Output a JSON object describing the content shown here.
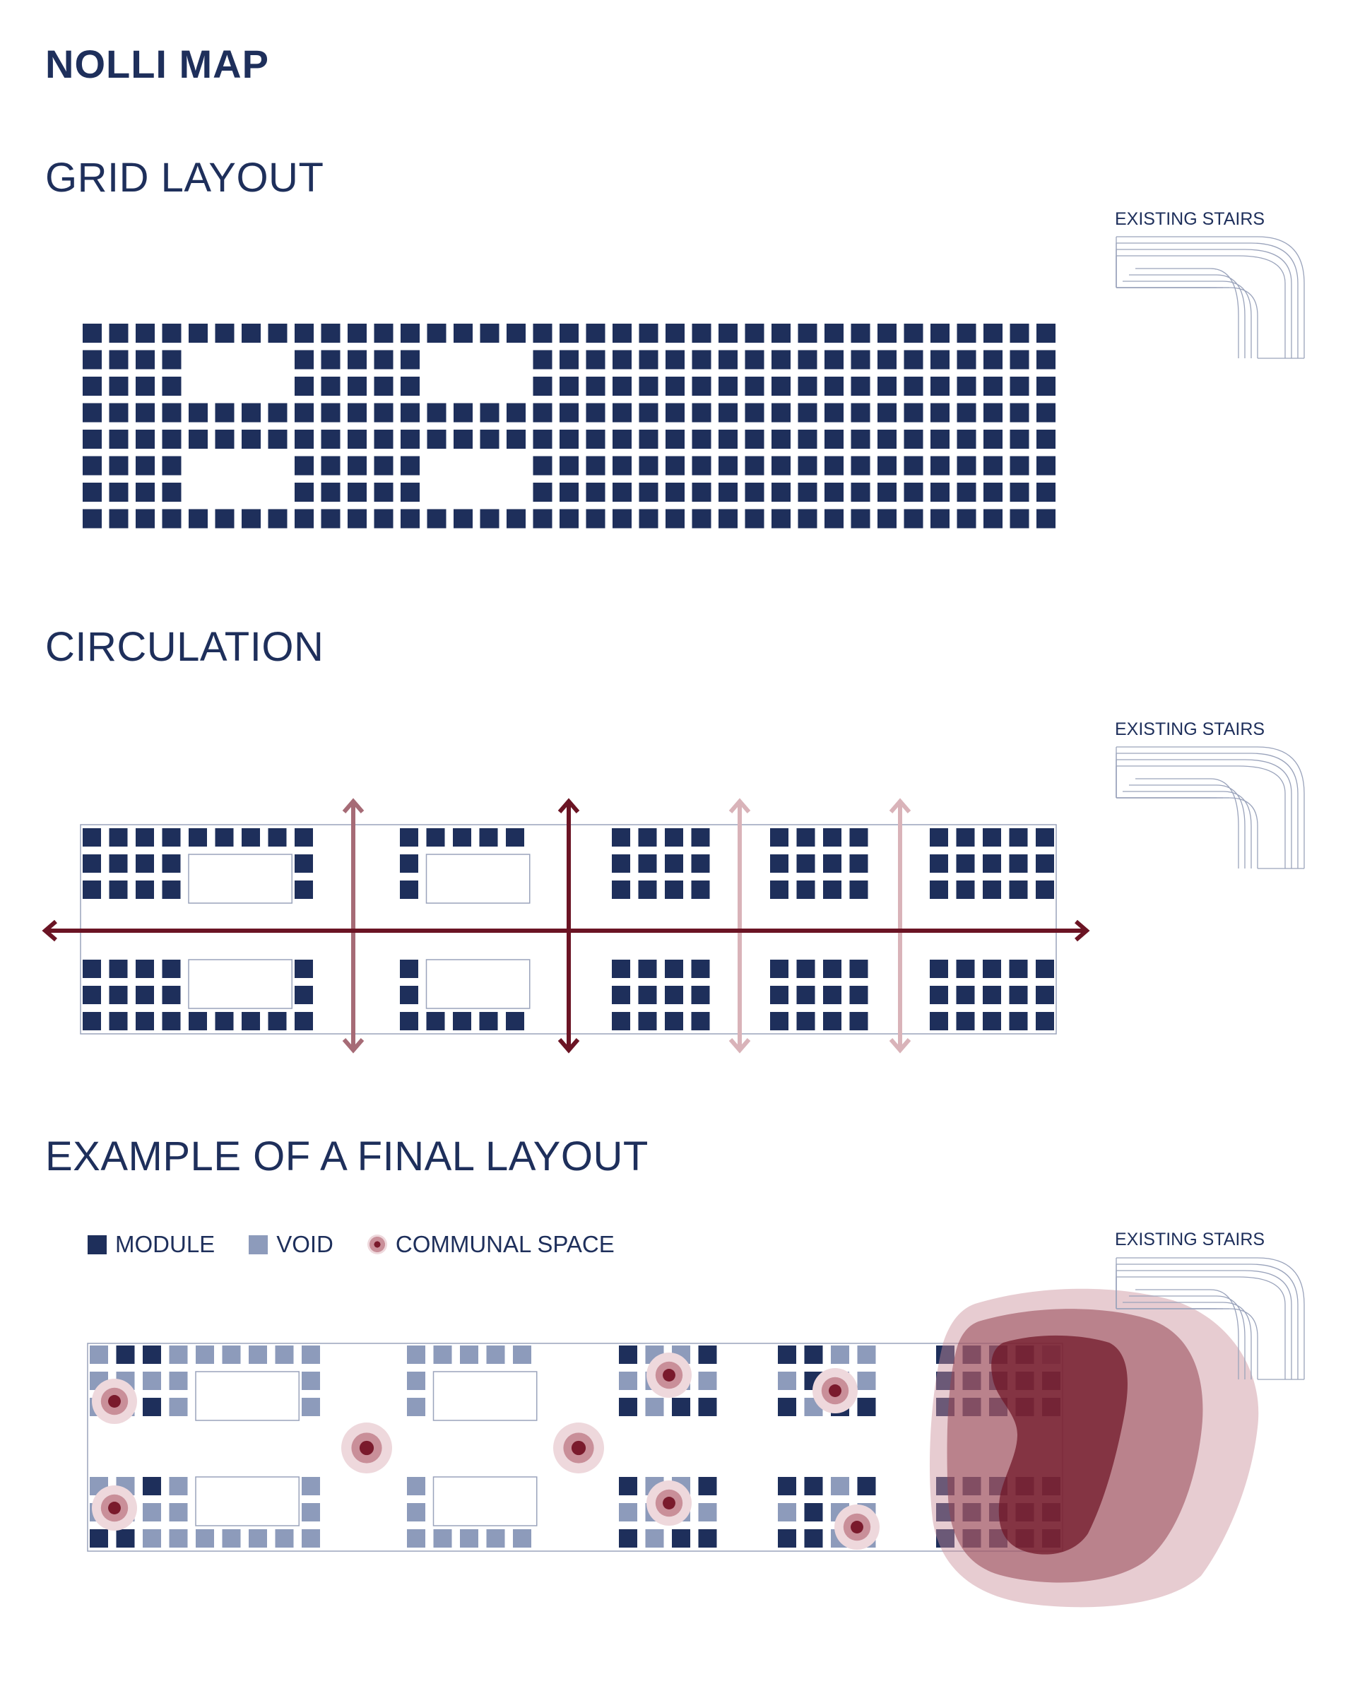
{
  "title": "NOLLI MAP",
  "sections": {
    "grid": {
      "heading": "GRID LAYOUT"
    },
    "circulation": {
      "heading": "CIRCULATION"
    },
    "final": {
      "heading": "EXAMPLE OF A FINAL LAYOUT"
    }
  },
  "stairs_label": "EXISTING STAIRS",
  "legend": {
    "module": "MODULE",
    "void": "VOID",
    "communal": "COMMUNAL SPACE"
  },
  "colors": {
    "module": "#1e2f5b",
    "void": "#8d9bbb",
    "arrow_dark": "#6b1424",
    "arrow_mid": "#a66b76",
    "arrow_light": "#d9b3b9",
    "communal_core": "#7a1a2c",
    "communal_mid": "#c98f99",
    "communal_outer": "#eed8dc",
    "outline": "#9aa3bb"
  },
  "icons": {
    "stairs": "stairs-outline-icon",
    "arrow": "double-headed-arrow-icon",
    "communal": "concentric-circle-icon"
  }
}
